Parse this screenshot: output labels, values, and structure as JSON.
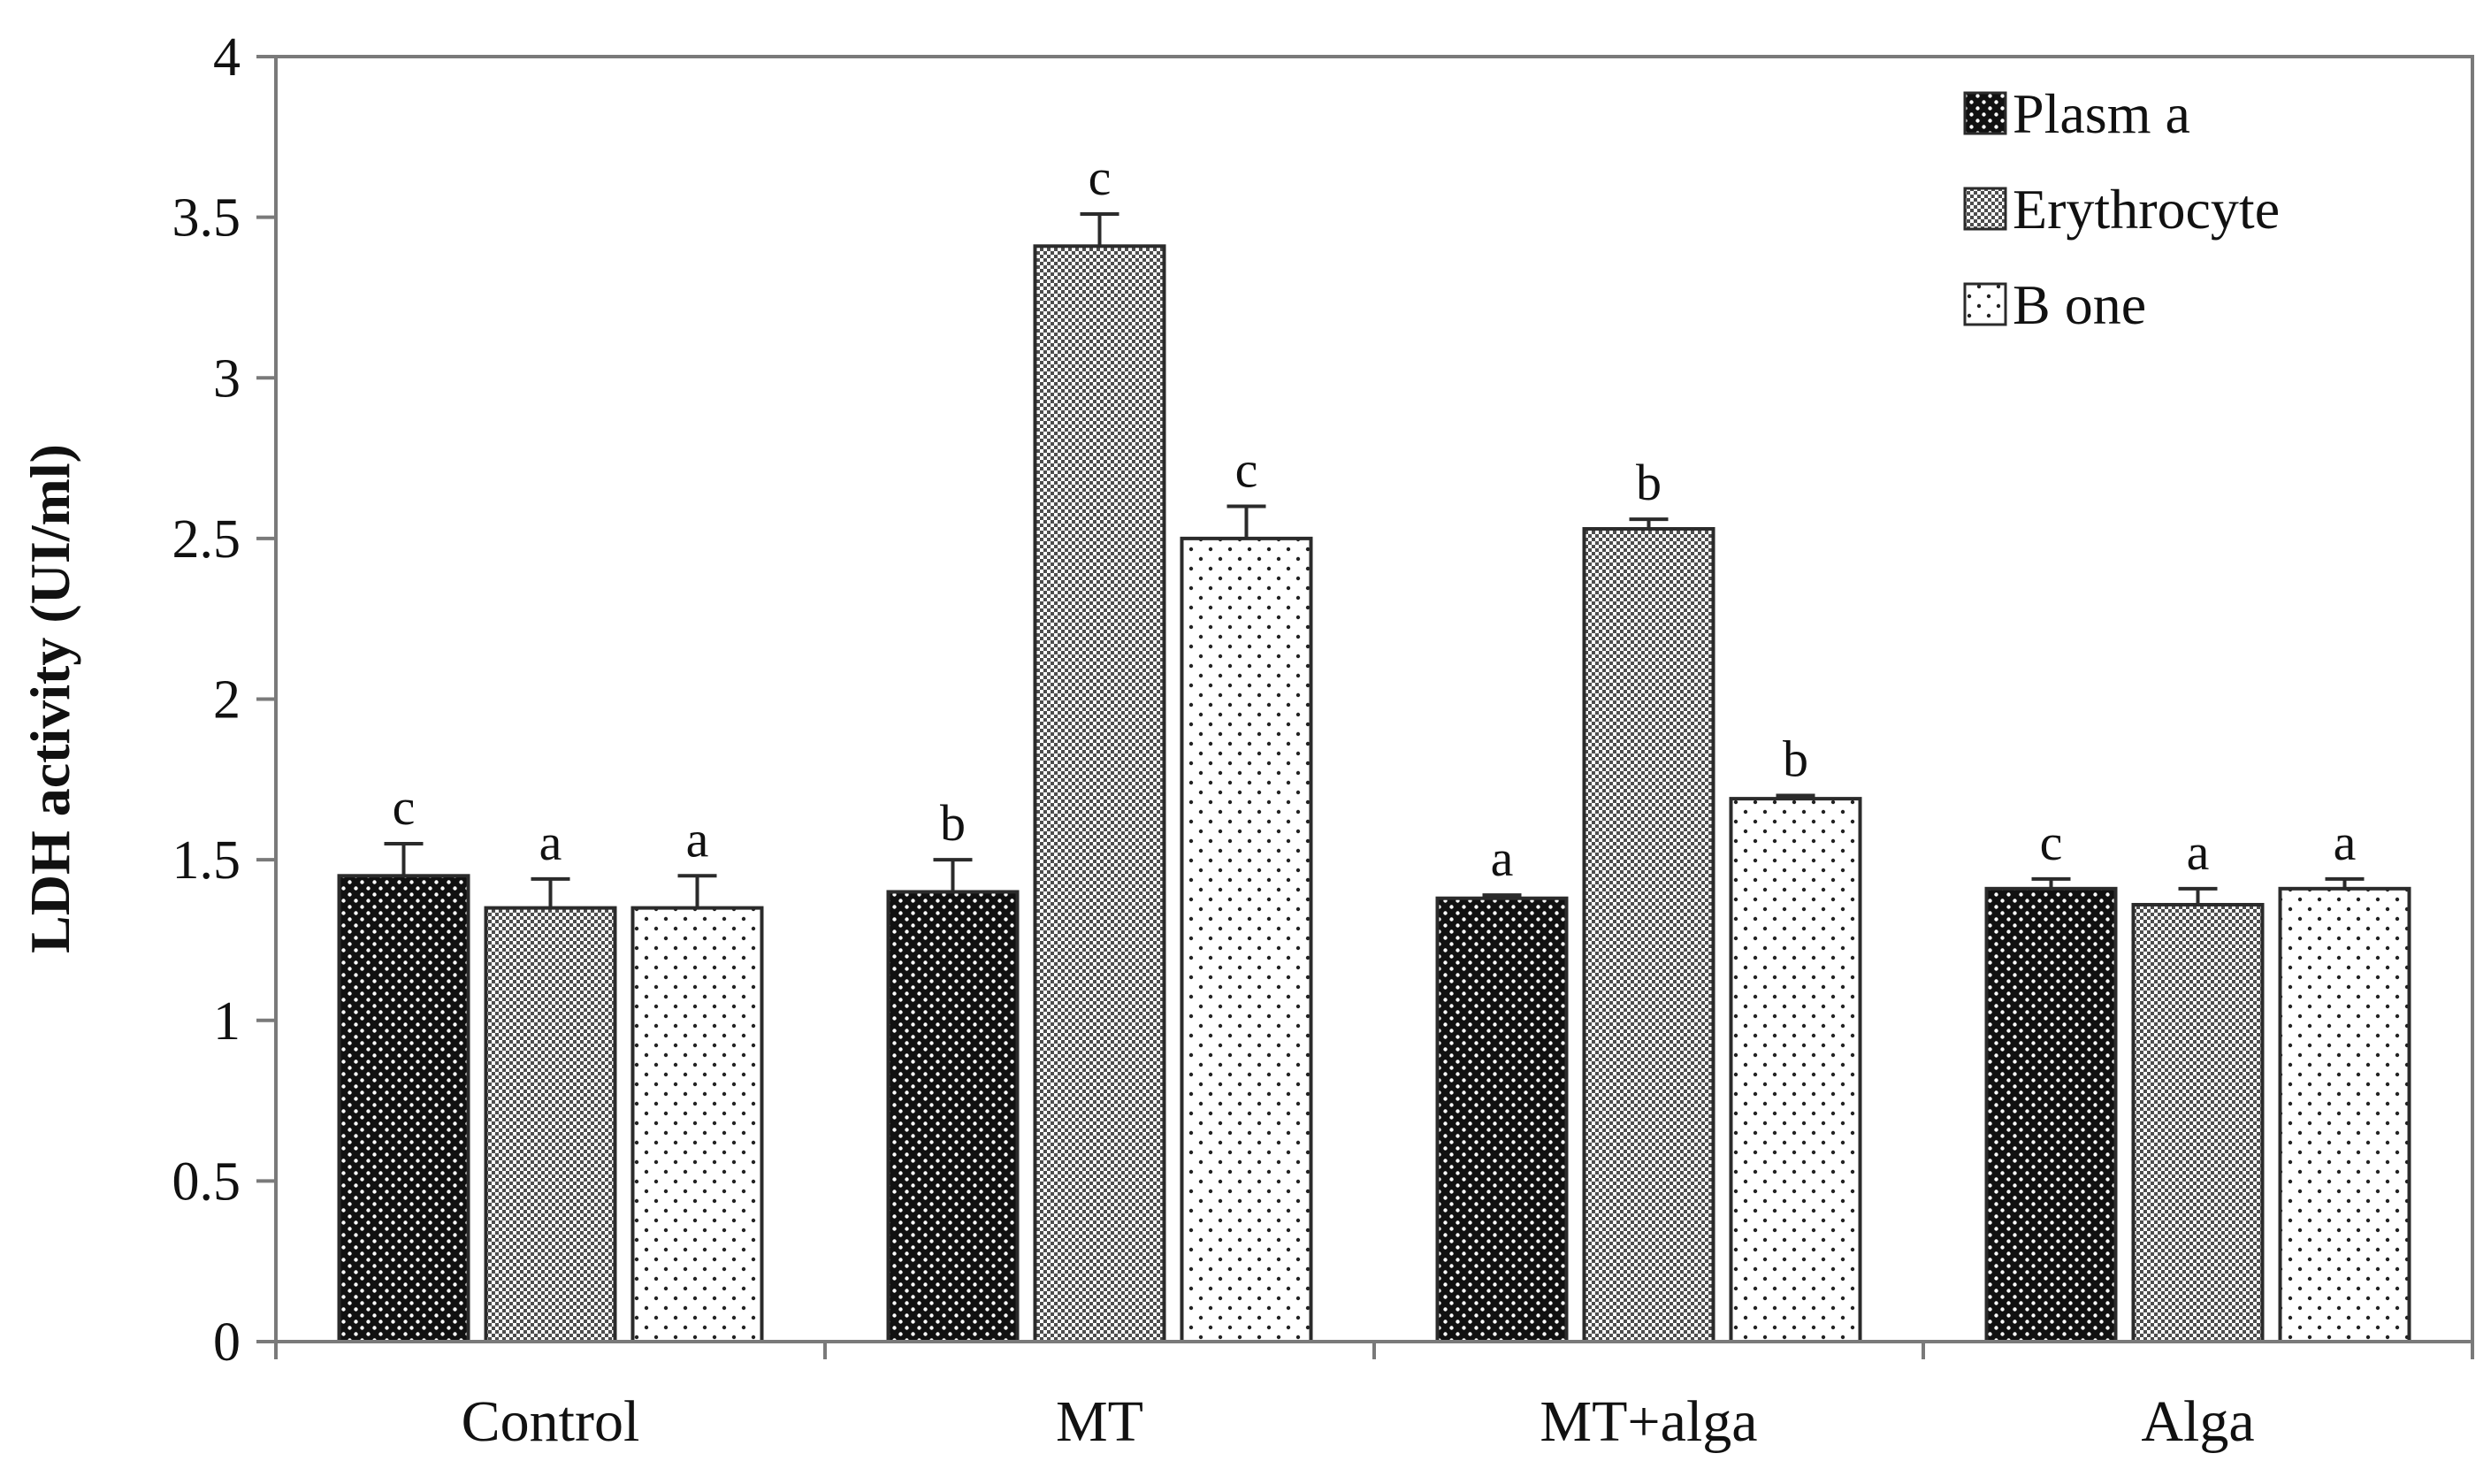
{
  "chart_data": {
    "type": "bar",
    "title": "",
    "xlabel": "",
    "ylabel": "LDH activity (UI/ml)",
    "ylim": [
      0,
      4
    ],
    "yticks": [
      0,
      0.5,
      1,
      1.5,
      2,
      2.5,
      3,
      3.5,
      4
    ],
    "ytick_labels": [
      "0",
      "0.5",
      "1",
      "1.5",
      "2",
      "2.5",
      "3",
      "3.5",
      "4"
    ],
    "grid": false,
    "legend_position": "top-right",
    "categories": [
      "Control",
      "MT",
      "MT+alga",
      "Alga"
    ],
    "series": [
      {
        "name": "Plasma",
        "legend_label": "Plasm a",
        "pattern": "dark",
        "values": [
          1.45,
          1.4,
          1.38,
          1.41
        ],
        "errors": [
          0.1,
          0.1,
          0.01,
          0.03
        ],
        "labels": [
          "c",
          "b",
          "a",
          "c"
        ]
      },
      {
        "name": "Erythrocyte",
        "legend_label": "Erythrocyte",
        "pattern": "medium",
        "values": [
          1.35,
          3.41,
          2.53,
          1.36
        ],
        "errors": [
          0.09,
          0.1,
          0.03,
          0.05
        ],
        "labels": [
          "a",
          "c",
          "b",
          "a"
        ]
      },
      {
        "name": "Bone",
        "legend_label": "B one",
        "pattern": "light",
        "values": [
          1.35,
          2.5,
          1.69,
          1.41
        ],
        "errors": [
          0.1,
          0.1,
          0.01,
          0.03
        ],
        "labels": [
          "a",
          "c",
          "b",
          "a"
        ]
      }
    ]
  },
  "colors": {
    "axis": "#7a7a7a",
    "bar_outline": "#2b2b2b",
    "text": "#111111"
  }
}
